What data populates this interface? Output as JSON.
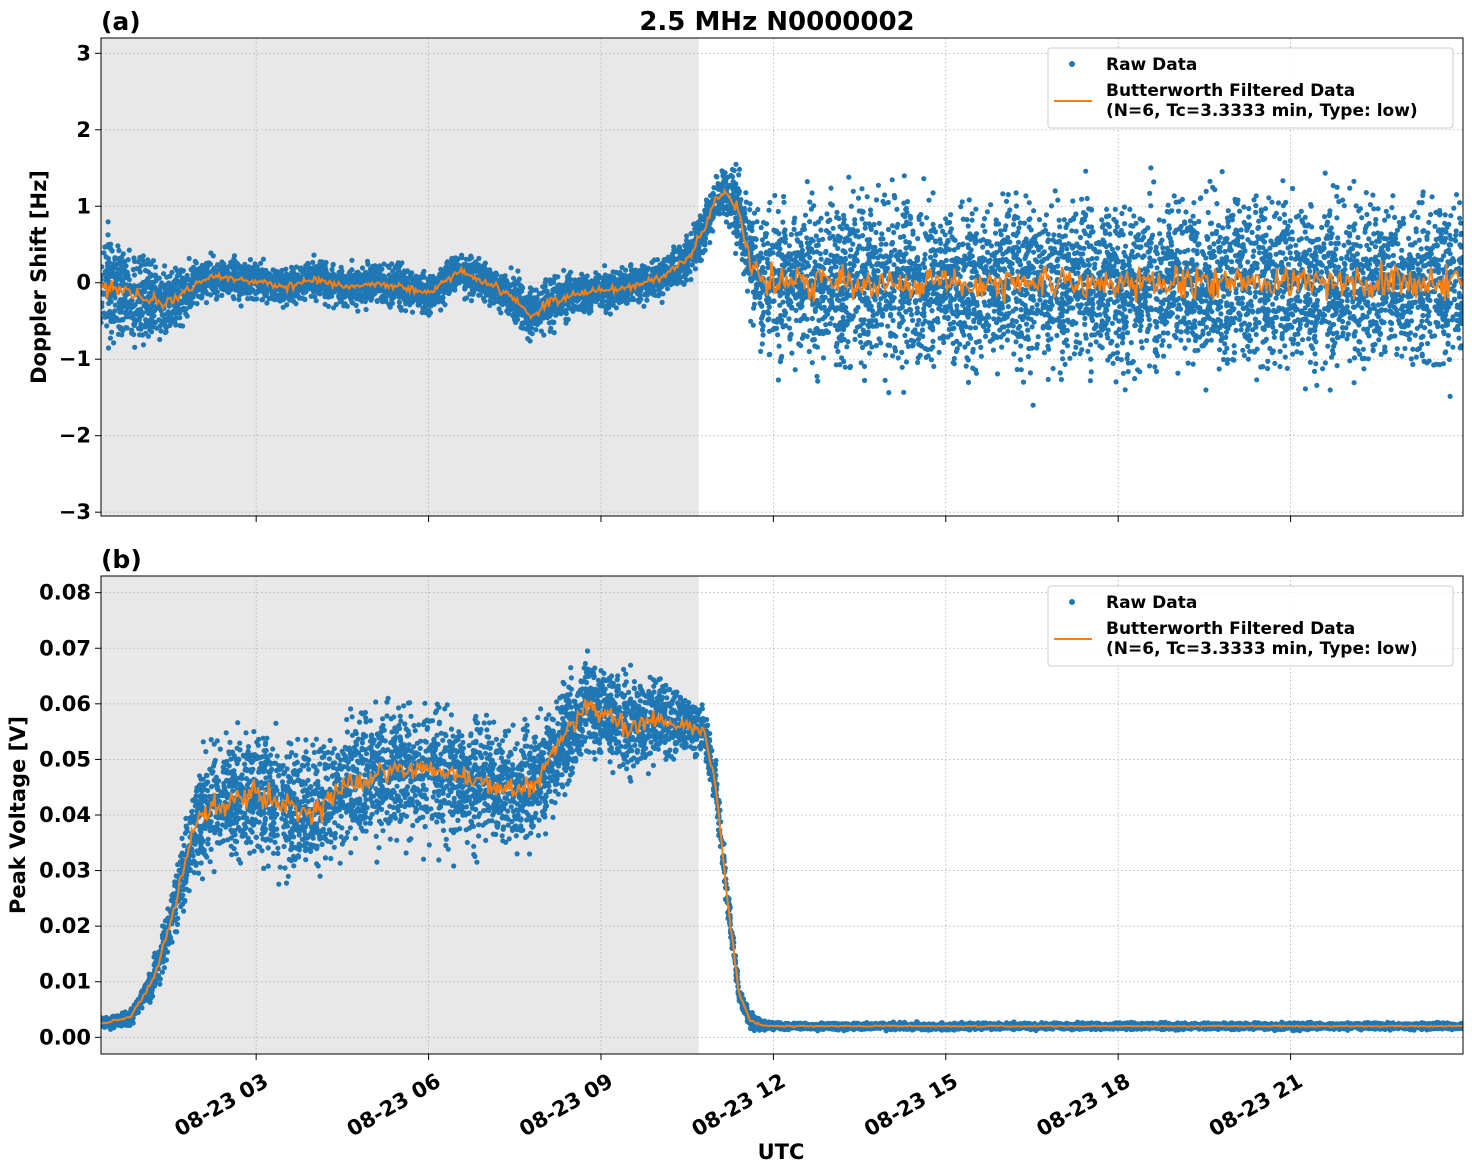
{
  "figure": {
    "title": "2.5 MHz N0000002",
    "xlabel": "UTC",
    "x_tick_labels": [
      "08-23 03",
      "08-23 06",
      "08-23 09",
      "08-23 12",
      "08-23 15",
      "08-23 18",
      "08-23 21"
    ]
  },
  "legend": {
    "raw_label": "Raw Data",
    "filtered_label_line1": "Butterworth Filtered Data",
    "filtered_label_line2": "(N=6, Tc=3.3333 min, Type: low)"
  },
  "colors": {
    "raw": "#1f77b4",
    "filtered": "#ff7f0e",
    "shade": "#e8e8e8",
    "grid": "#b0b0b0"
  },
  "chart_data": [
    {
      "type": "scatter",
      "panel_label": "(a)",
      "ylabel": "Doppler Shift [Hz]",
      "xlim_hours": [
        0.3,
        24
      ],
      "ylim": [
        -3.05,
        3.2
      ],
      "y_ticks": [
        -3,
        -2,
        -1,
        0,
        1,
        2,
        3
      ],
      "y_tick_labels": [
        "−3",
        "−2",
        "−1",
        "0",
        "1",
        "2",
        "3"
      ],
      "x_ticks_hours": [
        3,
        6,
        9,
        12,
        15,
        18,
        21
      ],
      "shaded_region_hours": [
        0.3,
        10.7
      ],
      "grid": true,
      "legend_position": "top-right",
      "filtered_trend": {
        "x_hours": [
          0.3,
          0.6,
          1.0,
          1.4,
          1.8,
          2.2,
          2.6,
          3.0,
          3.5,
          4.0,
          4.5,
          5.0,
          5.5,
          6.0,
          6.5,
          7.0,
          7.5,
          7.8,
          8.0,
          8.5,
          9.0,
          9.5,
          10.0,
          10.5,
          10.8,
          11.0,
          11.2,
          11.4,
          11.6,
          11.8,
          12.0,
          24.0
        ],
        "values": [
          0.0,
          -0.1,
          -0.2,
          -0.3,
          -0.1,
          0.1,
          0.05,
          0.02,
          -0.05,
          0.05,
          -0.05,
          -0.02,
          -0.05,
          -0.15,
          0.15,
          0.0,
          -0.2,
          -0.45,
          -0.3,
          -0.15,
          -0.1,
          -0.05,
          0.05,
          0.3,
          0.7,
          1.1,
          1.2,
          0.9,
          0.3,
          0.05,
          0.0,
          0.0
        ]
      },
      "scatter_spread": {
        "x_hours": [
          0.3,
          1.0,
          2.0,
          3.0,
          5.0,
          7.0,
          8.0,
          9.0,
          10.0,
          10.5,
          11.2,
          11.6,
          12.0,
          24.0
        ],
        "half_width": [
          1.0,
          0.7,
          0.35,
          0.3,
          0.3,
          0.3,
          0.4,
          0.3,
          0.3,
          0.35,
          0.4,
          0.8,
          1.3,
          1.3
        ]
      }
    },
    {
      "type": "scatter",
      "panel_label": "(b)",
      "ylabel": "Peak Voltage [V]",
      "xlim_hours": [
        0.3,
        24
      ],
      "ylim": [
        -0.003,
        0.083
      ],
      "y_ticks": [
        0.0,
        0.01,
        0.02,
        0.03,
        0.04,
        0.05,
        0.06,
        0.07,
        0.08
      ],
      "y_tick_labels": [
        "0.00",
        "0.01",
        "0.02",
        "0.03",
        "0.04",
        "0.05",
        "0.06",
        "0.07",
        "0.08"
      ],
      "x_ticks_hours": [
        3,
        6,
        9,
        12,
        15,
        18,
        21
      ],
      "shaded_region_hours": [
        0.3,
        10.7
      ],
      "grid": true,
      "legend_position": "top-right",
      "filtered_trend": {
        "x_hours": [
          0.3,
          0.8,
          1.2,
          1.5,
          1.8,
          2.0,
          2.3,
          2.6,
          3.0,
          3.5,
          4.0,
          4.5,
          5.0,
          5.5,
          6.0,
          6.5,
          7.0,
          7.5,
          7.9,
          8.2,
          8.5,
          8.8,
          9.0,
          9.5,
          10.0,
          10.5,
          10.8,
          11.0,
          11.2,
          11.4,
          11.6,
          11.8,
          12.0,
          24.0
        ],
        "values": [
          0.0025,
          0.0035,
          0.01,
          0.02,
          0.033,
          0.04,
          0.042,
          0.043,
          0.044,
          0.042,
          0.04,
          0.045,
          0.047,
          0.048,
          0.048,
          0.047,
          0.046,
          0.044,
          0.046,
          0.052,
          0.056,
          0.06,
          0.058,
          0.056,
          0.057,
          0.056,
          0.055,
          0.045,
          0.025,
          0.008,
          0.003,
          0.0022,
          0.002,
          0.002
        ]
      },
      "scatter_spread": {
        "x_hours": [
          0.3,
          1.0,
          1.5,
          2.0,
          3.0,
          5.0,
          7.0,
          8.0,
          9.0,
          10.0,
          10.8,
          11.0,
          11.3,
          11.6,
          12.0,
          24.0
        ],
        "half_width": [
          0.001,
          0.002,
          0.006,
          0.012,
          0.014,
          0.014,
          0.014,
          0.012,
          0.011,
          0.009,
          0.006,
          0.005,
          0.003,
          0.0015,
          0.0007,
          0.0007
        ]
      }
    }
  ]
}
